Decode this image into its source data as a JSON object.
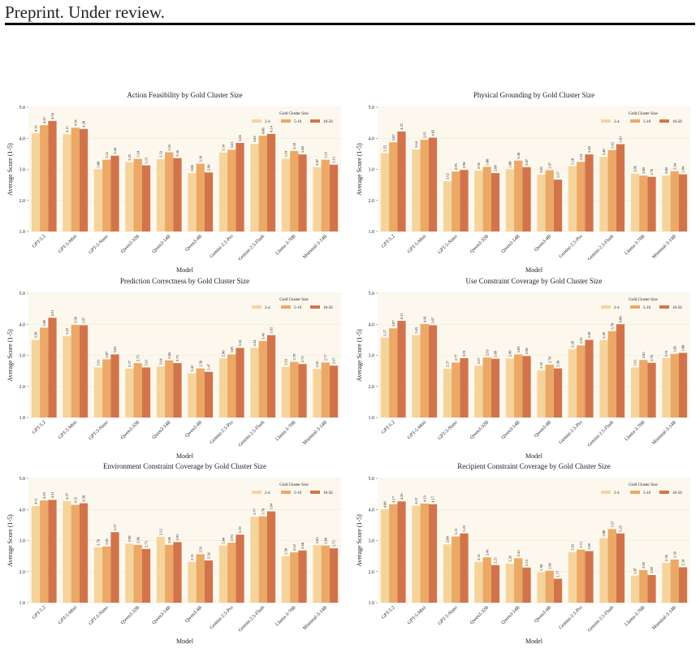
{
  "header": "Preprint. Under review.",
  "chart_data": [
    {
      "type": "bar",
      "title": "Action Feasibility by Gold Cluster Size",
      "xlabel": "Model",
      "ylabel": "Average Score (1-5)",
      "legend_title": "Gold Cluster Size",
      "legend_loc": "upper right",
      "grid": true,
      "categories": [
        "GPT-5.2",
        "GPT-5-Mini",
        "GPT-5-Nano",
        "Qwen3-32B",
        "Qwen3-14B",
        "Qwen3-4B",
        "Gemini-2.5-Pro",
        "Gemini-2.5-Flash",
        "Llama-3-70B",
        "Ministral-3-14B"
      ],
      "ylim": [
        1,
        5
      ],
      "yticks": [
        {
          "value": 1,
          "label": "1.0"
        },
        {
          "value": 2,
          "label": "2.0"
        },
        {
          "value": 3,
          "label": "3.0"
        },
        {
          "value": 4,
          "label": "4.0"
        },
        {
          "value": 5,
          "label": "5.0"
        }
      ],
      "series": [
        {
          "name": "2-4",
          "color": "#f5d49c",
          "values": [
            4.16,
            4.13,
            3.0,
            3.23,
            3.33,
            2.88,
            3.54,
            3.82,
            3.34,
            3.07
          ],
          "value_labels": [
            "4.16",
            "4.13",
            "3.00",
            "3.23",
            "3.33",
            "2.88",
            "3.54",
            "3.82",
            "3.34",
            "3.07"
          ]
        },
        {
          "name": "5-10",
          "color": "#eca866",
          "values": [
            4.42,
            4.34,
            3.31,
            3.34,
            3.55,
            3.18,
            3.63,
            4.08,
            3.59,
            3.31
          ],
          "value_labels": [
            "4.42",
            "4.34",
            "3.31",
            "3.34",
            "3.55",
            "3.18",
            "3.63",
            "4.08",
            "3.59",
            "3.31"
          ]
        },
        {
          "name": "10-50",
          "color": "#d2744b",
          "values": [
            4.56,
            4.3,
            3.44,
            3.13,
            3.36,
            2.9,
            3.85,
            4.14,
            3.48,
            3.15
          ],
          "value_labels": [
            "4.56",
            "4.30",
            "3.44",
            "3.13",
            "3.36",
            "2.90",
            "3.85",
            "4.14",
            "3.48",
            "3.15"
          ]
        }
      ]
    },
    {
      "type": "bar",
      "title": "Physical Grounding by Gold Cluster Size",
      "xlabel": "Model",
      "ylabel": "Average Score (1-5)",
      "legend_title": "Gold Cluster Size",
      "legend_loc": "upper right",
      "grid": true,
      "categories": [
        "GPT-5.2",
        "GPT-5-Mini",
        "GPT-5-Nano",
        "Qwen3-32B",
        "Qwen3-14B",
        "Qwen3-4B",
        "Gemini-2.5-Pro",
        "Gemini-2.5-Flash",
        "Llama-3-70B",
        "Ministral-3-14B"
      ],
      "ylim": [
        1,
        5
      ],
      "yticks": [
        {
          "value": 1,
          "label": "1.0"
        },
        {
          "value": 2,
          "label": "2.0"
        },
        {
          "value": 3,
          "label": "3.0"
        },
        {
          "value": 4,
          "label": "4.0"
        },
        {
          "value": 5,
          "label": "5.0"
        }
      ],
      "series": [
        {
          "name": "2-4",
          "color": "#f5d49c",
          "values": [
            3.52,
            3.64,
            2.62,
            2.96,
            3.0,
            2.83,
            3.1,
            3.4,
            2.86,
            2.8
          ],
          "value_labels": [
            "3.52",
            "3.64",
            "2.62",
            "2.96",
            "3.00",
            "2.83",
            "3.10",
            "3.40",
            "2.86",
            "2.80"
          ]
        },
        {
          "name": "5-10",
          "color": "#eca866",
          "values": [
            3.87,
            3.95,
            2.93,
            3.08,
            3.28,
            2.97,
            3.24,
            3.62,
            2.8,
            2.94
          ],
          "value_labels": [
            "3.87",
            "3.95",
            "2.93",
            "3.08",
            "3.28",
            "2.97",
            "3.24",
            "3.62",
            "2.80",
            "2.94"
          ]
        },
        {
          "name": "10-50",
          "color": "#d2744b",
          "values": [
            4.22,
            4.02,
            2.98,
            2.88,
            3.07,
            2.67,
            3.48,
            3.81,
            2.76,
            2.84
          ],
          "value_labels": [
            "4.22",
            "4.02",
            "2.98",
            "2.88",
            "3.07",
            "2.67",
            "3.48",
            "3.81",
            "2.76",
            "2.84"
          ]
        }
      ]
    },
    {
      "type": "bar",
      "title": "Prediction Correctness by Gold Cluster Size",
      "xlabel": "Model",
      "ylabel": "Average Score (1-5)",
      "legend_title": "Gold Cluster Size",
      "legend_loc": "upper right",
      "grid": true,
      "categories": [
        "GPT-5.2",
        "GPT-5-Mini",
        "GPT-5-Nano",
        "Qwen3-32B",
        "Qwen3-14B",
        "Qwen3-4B",
        "Gemini-2.5-Pro",
        "Gemini-2.5-Flash",
        "Llama-3-70B",
        "Ministral-3-14B"
      ],
      "ylim": [
        1,
        5
      ],
      "yticks": [
        {
          "value": 1,
          "label": "1.0"
        },
        {
          "value": 2,
          "label": "2.0"
        },
        {
          "value": 3,
          "label": "3.0"
        },
        {
          "value": 4,
          "label": "4.0"
        },
        {
          "value": 5,
          "label": "5.0"
        }
      ],
      "series": [
        {
          "name": "2-4",
          "color": "#f5d49c",
          "values": [
            3.5,
            3.62,
            2.61,
            2.57,
            2.64,
            2.42,
            2.9,
            3.24,
            2.63,
            2.56
          ],
          "value_labels": [
            "3.50",
            "3.62",
            "2.61",
            "2.57",
            "2.64",
            "2.42",
            "2.90",
            "3.24",
            "2.63",
            "2.56"
          ]
        },
        {
          "name": "5-10",
          "color": "#eca866",
          "values": [
            3.89,
            3.98,
            2.87,
            2.75,
            2.84,
            2.58,
            3.03,
            3.46,
            2.79,
            2.77
          ],
          "value_labels": [
            "3.89",
            "3.98",
            "2.87",
            "2.75",
            "2.84",
            "2.58",
            "3.03",
            "3.46",
            "2.79",
            "2.77"
          ]
        },
        {
          "name": "10-50",
          "color": "#d2744b",
          "values": [
            4.21,
            3.97,
            3.03,
            2.61,
            2.75,
            2.47,
            3.24,
            3.65,
            2.72,
            2.67
          ],
          "value_labels": [
            "4.21",
            "3.97",
            "3.03",
            "2.61",
            "2.75",
            "2.47",
            "3.24",
            "3.65",
            "2.72",
            "2.67"
          ]
        }
      ]
    },
    {
      "type": "bar",
      "title": "Use Constraint Coverage by Gold Cluster Size",
      "xlabel": "Model",
      "ylabel": "Average Score (1-5)",
      "legend_title": "Gold Cluster Size",
      "legend_loc": "upper right",
      "grid": true,
      "categories": [
        "GPT-5.2",
        "GPT-5-Mini",
        "GPT-5-Nano",
        "Qwen3-32B",
        "Qwen3-14B",
        "Qwen3-4B",
        "Gemini-2.5-Pro",
        "Gemini-2.5-Flash",
        "Llama-3-70B",
        "Ministral-3-14B"
      ],
      "ylim": [
        1,
        5
      ],
      "yticks": [
        {
          "value": 1,
          "label": "1.0"
        },
        {
          "value": 2,
          "label": "2.0"
        },
        {
          "value": 3,
          "label": "3.0"
        },
        {
          "value": 4,
          "label": "4.0"
        },
        {
          "value": 5,
          "label": "5.0"
        }
      ],
      "series": [
        {
          "name": "2-4",
          "color": "#f5d49c",
          "values": [
            3.57,
            3.65,
            2.57,
            2.67,
            2.9,
            2.52,
            3.2,
            3.49,
            2.61,
            2.91
          ],
          "value_labels": [
            "3.57",
            "3.65",
            "2.57",
            "2.67",
            "2.90",
            "2.52",
            "3.20",
            "3.49",
            "2.61",
            "2.91"
          ]
        },
        {
          "name": "5-10",
          "color": "#eca866",
          "values": [
            3.87,
            4.01,
            2.77,
            2.93,
            3.03,
            2.7,
            3.32,
            3.78,
            2.85,
            3.05
          ],
          "value_labels": [
            "3.87",
            "4.01",
            "2.77",
            "2.93",
            "3.03",
            "2.70",
            "3.32",
            "3.78",
            "2.85",
            "3.05"
          ]
        },
        {
          "name": "10-50",
          "color": "#d2744b",
          "values": [
            4.11,
            3.97,
            2.91,
            2.89,
            2.98,
            2.58,
            3.5,
            4.0,
            2.76,
            3.08
          ],
          "value_labels": [
            "4.11",
            "3.97",
            "2.91",
            "2.89",
            "2.98",
            "2.58",
            "3.50",
            "4.00",
            "2.76",
            "3.08"
          ]
        }
      ]
    },
    {
      "type": "bar",
      "title": "Environment Constraint Coverage by Gold Cluster Size",
      "xlabel": "Model",
      "ylabel": "Average Score (1-5)",
      "legend_title": "Gold Cluster Size",
      "legend_loc": "upper right",
      "grid": true,
      "categories": [
        "GPT-5.2",
        "GPT-5-Mini",
        "GPT-5-Nano",
        "Qwen3-32B",
        "Qwen3-14B",
        "Qwen3-4B",
        "Gemini-2.5-Pro",
        "Gemini-2.5-Flash",
        "Llama-3-70B",
        "Ministral-3-14B"
      ],
      "ylim": [
        1,
        5
      ],
      "yticks": [
        {
          "value": 1,
          "label": "1.0"
        },
        {
          "value": 2,
          "label": "2.0"
        },
        {
          "value": 3,
          "label": "3.0"
        },
        {
          "value": 4,
          "label": "4.0"
        },
        {
          "value": 5,
          "label": "5.0"
        }
      ],
      "series": [
        {
          "name": "2-4",
          "color": "#f5d49c",
          "values": [
            4.11,
            4.27,
            2.78,
            2.9,
            3.12,
            2.31,
            2.84,
            3.77,
            2.5,
            2.85
          ],
          "value_labels": [
            "4.11",
            "4.27",
            "2.78",
            "2.90",
            "3.12",
            "2.31",
            "2.84",
            "3.77",
            "2.50",
            "2.85"
          ]
        },
        {
          "name": "5-10",
          "color": "#eca866",
          "values": [
            4.29,
            4.15,
            2.81,
            2.86,
            2.86,
            2.56,
            2.93,
            3.78,
            2.62,
            2.84
          ],
          "value_labels": [
            "4.29",
            "4.15",
            "2.81",
            "2.86",
            "2.86",
            "2.56",
            "2.93",
            "3.78",
            "2.62",
            "2.84"
          ]
        },
        {
          "name": "10-50",
          "color": "#d2744b",
          "values": [
            4.31,
            4.2,
            3.27,
            2.73,
            2.95,
            2.36,
            3.19,
            3.94,
            2.68,
            2.75
          ],
          "value_labels": [
            "4.31",
            "4.20",
            "3.27",
            "2.73",
            "2.95",
            "2.36",
            "3.19",
            "3.94",
            "2.68",
            "2.75"
          ]
        }
      ]
    },
    {
      "type": "bar",
      "title": "Recipient Constraint Coverage by Gold Cluster Size",
      "xlabel": "Model",
      "ylabel": "Average Score (1-5)",
      "legend_title": "Gold Cluster Size",
      "legend_loc": "upper right",
      "grid": true,
      "categories": [
        "GPT-5.2",
        "GPT-5-Mini",
        "GPT-5-Nano",
        "Qwen3-32B",
        "Qwen3-14B",
        "Qwen3-4B",
        "Gemini-2.5-Pro",
        "Gemini-2.5-Flash",
        "Llama-3-70B",
        "Ministral-3-14B"
      ],
      "ylim": [
        1,
        5
      ],
      "yticks": [
        {
          "value": 1,
          "label": "1.0"
        },
        {
          "value": 2,
          "label": "2.0"
        },
        {
          "value": 3,
          "label": "3.0"
        },
        {
          "value": 4,
          "label": "4.0"
        },
        {
          "value": 5,
          "label": "5.0"
        }
      ],
      "series": [
        {
          "name": "2-4",
          "color": "#f5d49c",
          "values": [
            4.0,
            4.12,
            2.88,
            2.31,
            2.26,
            1.98,
            2.63,
            3.08,
            1.87,
            2.28
          ],
          "value_labels": [
            "4.00",
            "4.12",
            "2.88",
            "2.31",
            "2.26",
            "1.98",
            "2.63",
            "3.08",
            "1.87",
            "2.28"
          ]
        },
        {
          "name": "5-10",
          "color": "#eca866",
          "values": [
            4.17,
            4.19,
            3.13,
            2.46,
            2.43,
            2.03,
            2.71,
            3.37,
            2.05,
            2.39
          ],
          "value_labels": [
            "4.17",
            "4.19",
            "3.13",
            "2.46",
            "2.43",
            "2.03",
            "2.71",
            "3.37",
            "2.05",
            "2.39"
          ]
        },
        {
          "name": "10-50",
          "color": "#d2744b",
          "values": [
            4.26,
            4.17,
            3.23,
            2.21,
            2.13,
            1.77,
            2.66,
            3.23,
            1.89,
            2.14
          ],
          "value_labels": [
            "4.26",
            "4.17",
            "3.23",
            "2.21",
            "2.13",
            "1.77",
            "2.66",
            "3.23",
            "1.89",
            "2.14"
          ]
        }
      ]
    }
  ]
}
